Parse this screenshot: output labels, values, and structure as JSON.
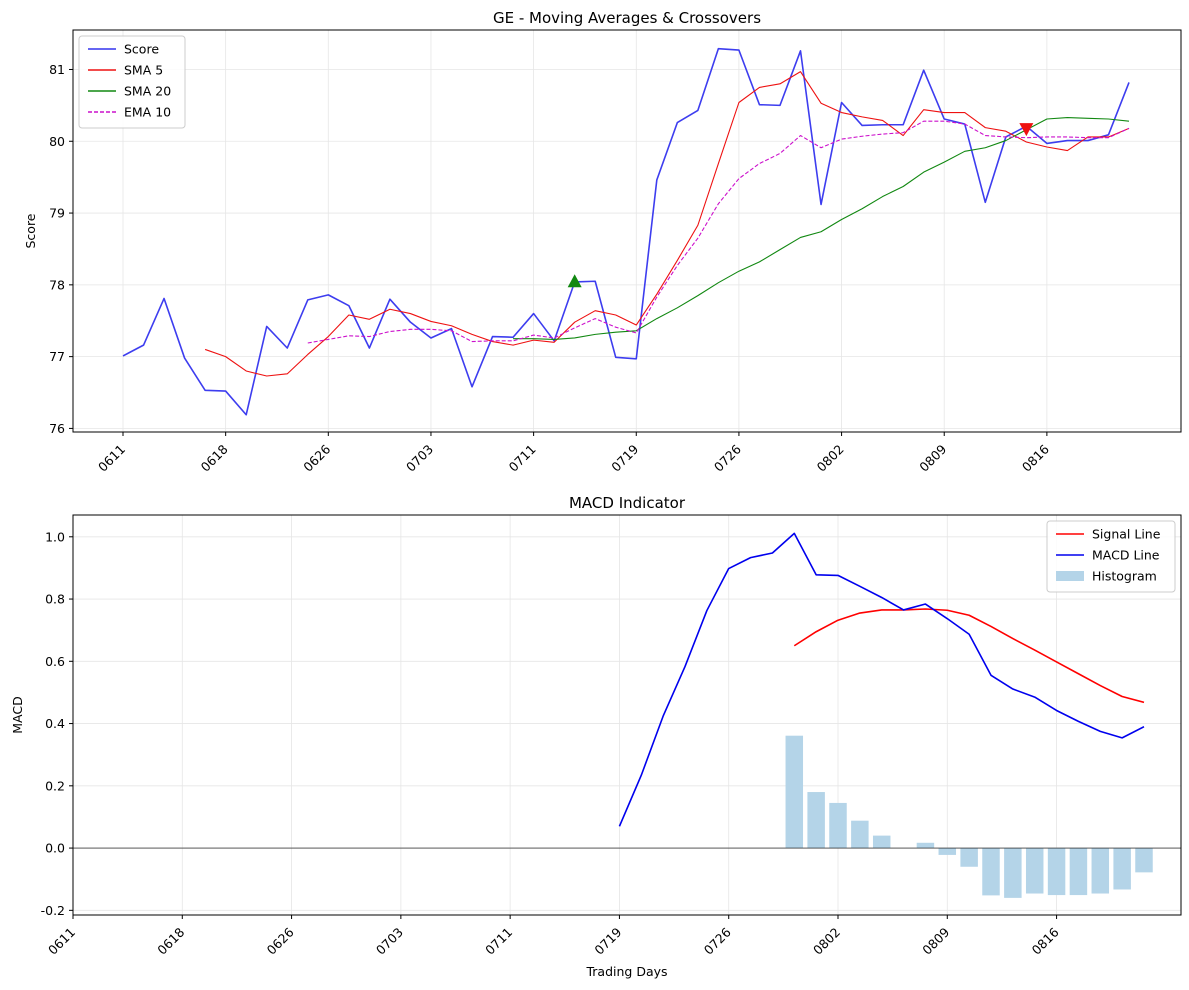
{
  "chart_data": [
    {
      "type": "line",
      "title": "GE - Moving Averages & Crossovers",
      "xlabel": "",
      "ylabel": "Score",
      "ylim": [
        75.95,
        81.55
      ],
      "yticks": [
        76,
        77,
        78,
        79,
        80,
        81
      ],
      "grid": true,
      "legend_position": "top-left",
      "x_tick_labels": [
        "0611",
        "0618",
        "0626",
        "0703",
        "0711",
        "0719",
        "0726",
        "0802",
        "0809",
        "0816"
      ],
      "x_tick_indices": [
        0,
        5,
        10,
        15,
        20,
        25,
        30,
        35,
        40,
        45
      ],
      "series": [
        {
          "name": "Score",
          "color": "#3333ee",
          "style": "solid",
          "start": 0,
          "values": [
            77.01,
            77.16,
            77.81,
            76.98,
            76.53,
            76.52,
            76.19,
            77.42,
            77.12,
            77.79,
            77.86,
            77.71,
            77.12,
            77.8,
            77.48,
            77.26,
            77.39,
            76.58,
            77.28,
            77.27,
            77.6,
            77.22,
            78.04,
            78.05,
            76.99,
            76.97,
            79.46,
            80.26,
            80.43,
            81.29,
            81.27,
            80.51,
            80.5,
            81.26,
            79.12,
            80.54,
            80.22,
            80.23,
            80.23,
            80.99,
            80.31,
            80.24,
            79.15,
            80.06,
            80.21,
            79.97,
            80.01,
            80.01,
            80.09,
            80.82
          ]
        },
        {
          "name": "SMA 5",
          "color": "#ee1111",
          "style": "solid",
          "start": 4,
          "values": [
            77.1,
            77.0,
            76.8,
            76.73,
            76.76,
            77.03,
            77.28,
            77.58,
            77.52,
            77.66,
            77.6,
            77.49,
            77.43,
            77.31,
            77.21,
            77.16,
            77.23,
            77.2,
            77.48,
            77.64,
            77.58,
            77.44,
            77.87,
            78.34,
            78.83,
            79.69,
            80.54,
            80.75,
            80.8,
            80.97,
            80.53,
            80.4,
            80.34,
            80.29,
            80.08,
            80.44,
            80.4,
            80.4,
            80.19,
            80.14,
            79.99,
            79.92,
            79.87,
            80.06,
            80.06,
            80.18
          ]
        },
        {
          "name": "SMA 20",
          "color": "#118811",
          "style": "solid",
          "start": 19,
          "values": [
            77.25,
            77.25,
            77.24,
            77.26,
            77.31,
            77.34,
            77.36,
            77.53,
            77.68,
            77.85,
            78.03,
            78.19,
            78.32,
            78.49,
            78.66,
            78.74,
            78.91,
            79.06,
            79.23,
            79.37,
            79.57,
            79.71,
            79.86,
            79.91,
            80.01,
            80.16,
            80.31,
            80.33,
            80.32,
            80.31,
            80.28
          ]
        },
        {
          "name": "EMA 10",
          "color": "#cc11cc",
          "style": "dashed",
          "start": 9,
          "values": [
            77.19,
            77.24,
            77.29,
            77.28,
            77.35,
            77.38,
            77.38,
            77.36,
            77.21,
            77.22,
            77.22,
            77.3,
            77.26,
            77.4,
            77.53,
            77.41,
            77.33,
            77.83,
            78.27,
            78.65,
            79.13,
            79.48,
            79.69,
            79.83,
            80.08,
            79.91,
            80.03,
            80.07,
            80.1,
            80.12,
            80.28,
            80.28,
            80.24,
            80.08,
            80.06,
            80.05,
            80.06,
            80.06,
            80.05,
            80.05,
            80.18
          ]
        }
      ],
      "markers": [
        {
          "type": "golden-cross",
          "shape": "triangle-up",
          "color": "#118811",
          "x_index": 22,
          "y": 78.05
        },
        {
          "type": "death-cross",
          "shape": "triangle-down",
          "color": "#ee1111",
          "x_index": 44,
          "y": 80.17
        }
      ]
    },
    {
      "type": "line",
      "title": "MACD Indicator",
      "xlabel": "Trading Days",
      "ylabel": "MACD",
      "ylim": [
        -0.215,
        1.07
      ],
      "yticks": [
        -0.2,
        0.0,
        0.2,
        0.4,
        0.6,
        0.8,
        1.0
      ],
      "grid": true,
      "legend_position": "top-right",
      "x_tick_labels": [
        "0611",
        "0618",
        "0626",
        "0703",
        "0711",
        "0719",
        "0726",
        "0802",
        "0809",
        "0816"
      ],
      "x_tick_indices": [
        0,
        5,
        10,
        15,
        20,
        25,
        30,
        35,
        40,
        45
      ],
      "series": [
        {
          "name": "Signal Line",
          "color": "#ff0000",
          "style": "solid",
          "start": 33,
          "values": [
            0.65,
            0.695,
            0.732,
            0.755,
            0.765,
            0.765,
            0.768,
            0.764,
            0.748,
            0.712,
            0.673,
            0.636,
            0.598,
            0.56,
            0.522,
            0.487,
            0.468
          ]
        },
        {
          "name": "MACD Line",
          "color": "#0000ee",
          "style": "solid",
          "start": 25,
          "values": [
            0.07,
            0.234,
            0.424,
            0.583,
            0.763,
            0.898,
            0.933,
            0.948,
            1.011,
            0.878,
            0.876,
            0.841,
            0.805,
            0.765,
            0.784,
            0.737,
            0.687,
            0.555,
            0.511,
            0.485,
            0.442,
            0.407,
            0.375,
            0.354,
            0.39
          ]
        },
        {
          "name": "Histogram",
          "color": "#b4d4e8",
          "style": "bar",
          "start": 33,
          "values": [
            0.361,
            0.18,
            0.145,
            0.088,
            0.04,
            0.0,
            0.017,
            -0.022,
            -0.06,
            -0.152,
            -0.16,
            -0.146,
            -0.151,
            -0.151,
            -0.146,
            -0.133,
            -0.078
          ]
        }
      ]
    }
  ]
}
